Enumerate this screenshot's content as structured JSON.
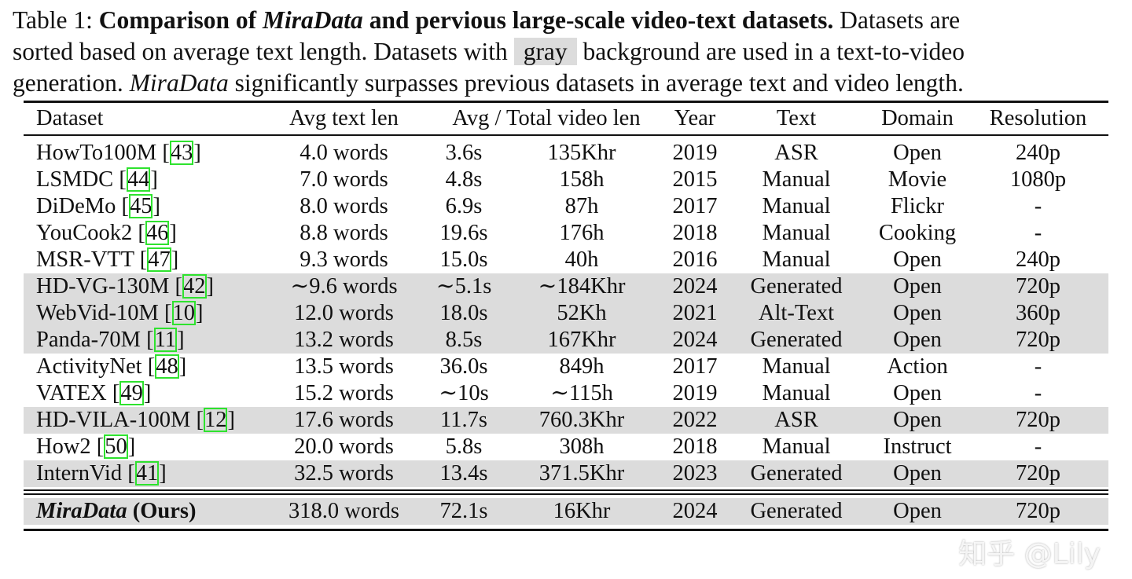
{
  "caption": {
    "label": "Table 1:",
    "bold_a": "Comparison of",
    "bold_italic": "MiraData",
    "bold_b": "and pervious large-scale video-text datasets.",
    "line1_rest": "Datasets are",
    "line2_a": "sorted based on average text length. Datasets with",
    "gray_word": "gray",
    "line2_b": "background are used in a text-to-video",
    "line3_a": "generation.",
    "line3_italic": "MiraData",
    "line3_b": "significantly surpasses previous datasets in average text and video length."
  },
  "headers": [
    "Dataset",
    "Avg text len",
    "Avg / Total video len",
    "",
    "Year",
    "Text",
    "Domain",
    "Resolution"
  ],
  "rows": [
    {
      "name": "HowTo100M",
      "cite": "43",
      "text_len": "4.0 words",
      "avg": "3.6s",
      "total": "135Khr",
      "year": "2019",
      "text": "ASR",
      "domain": "Open",
      "res": "240p",
      "shaded": false
    },
    {
      "name": "LSMDC",
      "cite": "44",
      "text_len": "7.0 words",
      "avg": "4.8s",
      "total": "158h",
      "year": "2015",
      "text": "Manual",
      "domain": "Movie",
      "res": "1080p",
      "shaded": false
    },
    {
      "name": "DiDeMo",
      "cite": "45",
      "text_len": "8.0 words",
      "avg": "6.9s",
      "total": "87h",
      "year": "2017",
      "text": "Manual",
      "domain": "Flickr",
      "res": "-",
      "shaded": false
    },
    {
      "name": "YouCook2",
      "cite": "46",
      "text_len": "8.8 words",
      "avg": "19.6s",
      "total": "176h",
      "year": "2018",
      "text": "Manual",
      "domain": "Cooking",
      "res": "-",
      "shaded": false
    },
    {
      "name": "MSR-VTT",
      "cite": "47",
      "text_len": "9.3 words",
      "avg": "15.0s",
      "total": "40h",
      "year": "2016",
      "text": "Manual",
      "domain": "Open",
      "res": "240p",
      "shaded": false
    },
    {
      "name": "HD-VG-130M",
      "cite": "42",
      "text_len": "∼9.6 words",
      "avg": "∼5.1s",
      "total": "∼184Khr",
      "year": "2024",
      "text": "Generated",
      "domain": "Open",
      "res": "720p",
      "shaded": true
    },
    {
      "name": "WebVid-10M",
      "cite": "10",
      "text_len": "12.0 words",
      "avg": "18.0s",
      "total": "52Kh",
      "year": "2021",
      "text": "Alt-Text",
      "domain": "Open",
      "res": "360p",
      "shaded": true
    },
    {
      "name": "Panda-70M",
      "cite": "11",
      "text_len": "13.2 words",
      "avg": "8.5s",
      "total": "167Khr",
      "year": "2024",
      "text": "Generated",
      "domain": "Open",
      "res": "720p",
      "shaded": true
    },
    {
      "name": "ActivityNet",
      "cite": "48",
      "text_len": "13.5 words",
      "avg": "36.0s",
      "total": "849h",
      "year": "2017",
      "text": "Manual",
      "domain": "Action",
      "res": "-",
      "shaded": false
    },
    {
      "name": "VATEX",
      "cite": "49",
      "text_len": "15.2 words",
      "avg": "∼10s",
      "total": "∼115h",
      "year": "2019",
      "text": "Manual",
      "domain": "Open",
      "res": "-",
      "shaded": false
    },
    {
      "name": "HD-VILA-100M",
      "cite": "12",
      "text_len": "17.6 words",
      "avg": "11.7s",
      "total": "760.3Khr",
      "year": "2022",
      "text": "ASR",
      "domain": "Open",
      "res": "720p",
      "shaded": true
    },
    {
      "name": "How2",
      "cite": "50",
      "text_len": "20.0 words",
      "avg": "5.8s",
      "total": "308h",
      "year": "2018",
      "text": "Manual",
      "domain": "Instruct",
      "res": "-",
      "shaded": false
    },
    {
      "name": "InternVid",
      "cite": "41",
      "text_len": "32.5 words",
      "avg": "13.4s",
      "total": "371.5Khr",
      "year": "2023",
      "text": "Generated",
      "domain": "Open",
      "res": "720p",
      "shaded": true
    }
  ],
  "ours": {
    "name_italic": "MiraData",
    "name_suffix": "(Ours)",
    "text_len": "318.0 words",
    "avg": "72.1s",
    "total": "16Khr",
    "year": "2024",
    "text": "Generated",
    "domain": "Open",
    "res": "720p"
  },
  "watermark": "知乎 @Lily",
  "colors": {
    "shade": "#dcdcdc",
    "citation_box": "#2ee22e"
  }
}
